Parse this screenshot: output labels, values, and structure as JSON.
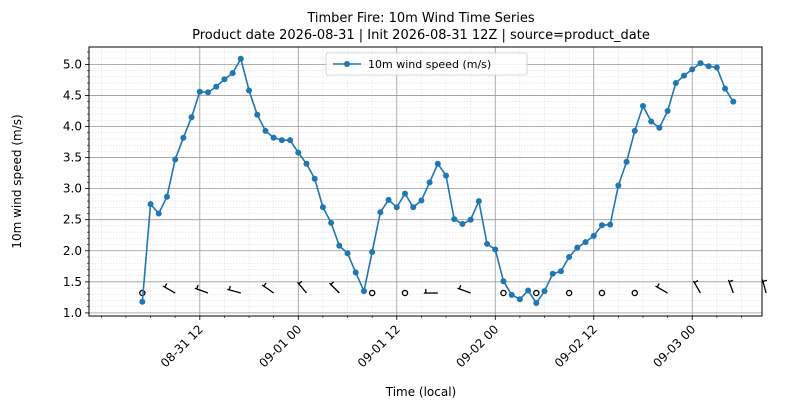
{
  "chart_data": {
    "type": "line",
    "title": "Timber Fire: 10m Wind Time Series",
    "subtitle": "Product date 2026-08-31 | Init 2026-08-31 12Z | source=product_date",
    "xlabel": "Time (local)",
    "ylabel": "10m wind speed (m/s)",
    "x_hours_start": 5,
    "x_hours_step": 1,
    "xlim_hours": [
      -1.5,
      80.5
    ],
    "ylim": [
      0.95,
      5.28
    ],
    "yticks": [
      1.0,
      1.5,
      2.0,
      2.5,
      3.0,
      3.5,
      4.0,
      4.5,
      5.0
    ],
    "ytick_labels": [
      "1.0",
      "1.5",
      "2.0",
      "2.5",
      "3.0",
      "3.5",
      "4.0",
      "4.5",
      "5.0"
    ],
    "xticks_hours": [
      12,
      24,
      36,
      48,
      60,
      72
    ],
    "xtick_labels": [
      "08-31 12",
      "09-01 00",
      "09-01 12",
      "09-02 00",
      "09-02 12",
      "09-03 00"
    ],
    "grid": true,
    "legend_position": "top-center",
    "color": "#1f77b4",
    "series": [
      {
        "name": "10m wind speed (m/s)",
        "values": [
          1.18,
          2.75,
          2.6,
          2.87,
          3.47,
          3.82,
          4.15,
          4.56,
          4.55,
          4.64,
          4.76,
          4.86,
          5.09,
          4.58,
          4.19,
          3.93,
          3.82,
          3.78,
          3.78,
          3.58,
          3.4,
          3.16,
          2.7,
          2.45,
          2.08,
          1.96,
          1.65,
          1.35,
          1.98,
          2.62,
          2.82,
          2.7,
          2.92,
          2.7,
          2.81,
          3.1,
          3.4,
          3.21,
          2.51,
          2.43,
          2.5,
          2.8,
          2.11,
          2.02,
          1.51,
          1.29,
          1.22,
          1.36,
          1.16,
          1.35,
          1.63,
          1.67,
          1.9,
          2.05,
          2.14,
          2.24,
          2.41,
          2.42,
          3.05,
          3.43,
          3.93,
          4.33,
          4.08,
          3.98,
          4.25,
          4.7,
          4.82,
          4.92,
          5.02,
          4.97,
          4.95,
          4.61,
          4.4
        ]
      }
    ],
    "wind_barbs": {
      "y": 1.32,
      "hours": [
        5,
        9,
        13,
        17,
        21,
        25,
        29,
        33,
        37,
        41,
        45,
        49,
        53,
        57,
        61,
        65,
        69,
        73,
        77,
        81
      ],
      "calm": [
        true,
        false,
        false,
        false,
        false,
        false,
        false,
        true,
        true,
        false,
        false,
        true,
        true,
        true,
        true,
        true,
        false,
        false,
        false,
        false
      ],
      "direction_deg": [
        0,
        300,
        290,
        285,
        305,
        320,
        315,
        0,
        0,
        270,
        290,
        0,
        0,
        0,
        0,
        0,
        300,
        330,
        340,
        345
      ]
    }
  }
}
